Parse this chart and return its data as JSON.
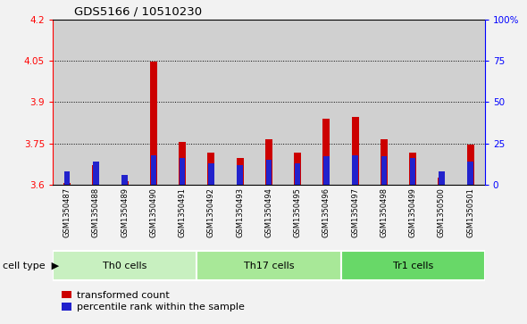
{
  "title": "GDS5166 / 10510230",
  "samples": [
    "GSM1350487",
    "GSM1350488",
    "GSM1350489",
    "GSM1350490",
    "GSM1350491",
    "GSM1350492",
    "GSM1350493",
    "GSM1350494",
    "GSM1350495",
    "GSM1350496",
    "GSM1350497",
    "GSM1350498",
    "GSM1350499",
    "GSM1350500",
    "GSM1350501"
  ],
  "transformed_count": [
    3.607,
    3.672,
    3.613,
    4.048,
    3.754,
    3.717,
    3.697,
    3.766,
    3.718,
    3.838,
    3.845,
    3.765,
    3.717,
    3.625,
    3.745
  ],
  "percentile_rank": [
    8,
    14,
    6,
    18,
    16,
    13,
    12,
    15,
    13,
    17,
    18,
    17,
    16,
    8,
    14
  ],
  "ylim_left": [
    3.6,
    4.2
  ],
  "ylim_right": [
    0,
    100
  ],
  "yticks_left": [
    3.6,
    3.75,
    3.9,
    4.05,
    4.2
  ],
  "yticks_right": [
    0,
    25,
    50,
    75,
    100
  ],
  "ytick_labels_right": [
    "0",
    "25",
    "50",
    "75",
    "100%"
  ],
  "bar_color_red": "#cc0000",
  "bar_color_blue": "#2222cc",
  "col_bg_color": "#d0d0d0",
  "plot_bg": "#ffffff",
  "legend_labels": [
    "transformed count",
    "percentile rank within the sample"
  ],
  "baseline": 3.6,
  "group_labels": [
    "Th0 cells",
    "Th17 cells",
    "Tr1 cells"
  ],
  "group_starts": [
    0,
    5,
    10
  ],
  "group_ends": [
    5,
    10,
    15
  ],
  "group_colors": [
    "#c8f0c0",
    "#a8e898",
    "#68d868"
  ]
}
